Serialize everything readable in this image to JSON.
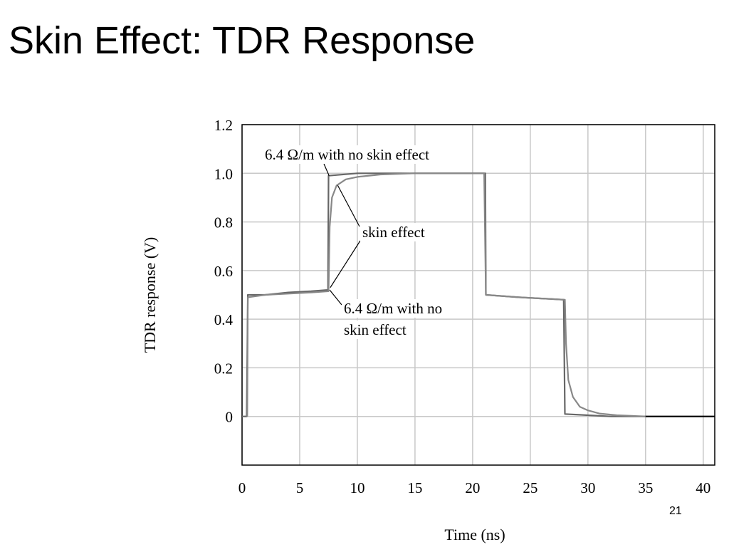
{
  "slide": {
    "title": "Skin Effect: TDR Response",
    "page_number": "21"
  },
  "chart_data": {
    "type": "line",
    "xlabel": "Time (ns)",
    "ylabel": "TDR response (V)",
    "xlim": [
      0,
      41
    ],
    "ylim": [
      -0.2,
      1.2
    ],
    "grid": true,
    "x_ticks": [
      "0",
      "5",
      "10",
      "15",
      "20",
      "25",
      "30",
      "35",
      "40"
    ],
    "y_ticks": [
      "1.2",
      "1.0",
      "0.8",
      "0.6",
      "0.4",
      "0.2",
      "0"
    ],
    "series": [
      {
        "style": "sharp",
        "color": "#666666",
        "points": [
          [
            0,
            0
          ],
          [
            0.4,
            0
          ],
          [
            0.5,
            0.5
          ],
          [
            2,
            0.5
          ],
          [
            4,
            0.51
          ],
          [
            6,
            0.515
          ],
          [
            7.3,
            0.52
          ],
          [
            7.45,
            0.52
          ],
          [
            7.5,
            0.99
          ],
          [
            10,
            1.0
          ],
          [
            15,
            1.0
          ],
          [
            21.1,
            1.0
          ],
          [
            21.15,
            0.5
          ],
          [
            24,
            0.49
          ],
          [
            26,
            0.485
          ],
          [
            27.9,
            0.48
          ],
          [
            28,
            0.01
          ],
          [
            30,
            0.005
          ],
          [
            32,
            0.0
          ],
          [
            35,
            0.0
          ]
        ]
      },
      {
        "style": "skin effect",
        "color": "#888888",
        "points": [
          [
            0.45,
            0
          ],
          [
            0.5,
            0.49
          ],
          [
            2,
            0.5
          ],
          [
            4,
            0.505
          ],
          [
            6,
            0.51
          ],
          [
            7.5,
            0.515
          ],
          [
            7.6,
            0.78
          ],
          [
            7.8,
            0.9
          ],
          [
            8.2,
            0.95
          ],
          [
            9,
            0.975
          ],
          [
            10,
            0.985
          ],
          [
            12,
            0.995
          ],
          [
            15,
            1.0
          ],
          [
            18,
            1.0
          ],
          [
            21,
            1.0
          ],
          [
            21.15,
            0.5
          ],
          [
            24,
            0.49
          ],
          [
            26,
            0.485
          ],
          [
            28,
            0.48
          ],
          [
            28.1,
            0.3
          ],
          [
            28.3,
            0.15
          ],
          [
            28.7,
            0.08
          ],
          [
            29.3,
            0.04
          ],
          [
            30,
            0.025
          ],
          [
            31,
            0.012
          ],
          [
            32.5,
            0.005
          ],
          [
            35,
            0.0
          ]
        ]
      },
      {
        "style": "baseline",
        "color": "#000000",
        "points": [
          [
            35,
            0.0
          ],
          [
            41,
            0.0
          ]
        ]
      }
    ],
    "annotations": [
      {
        "text": "6.4 Ω/m with no skin effect",
        "pointer_to": [
          7.6,
          0.99
        ]
      },
      {
        "text": "skin effect",
        "pointer_to": [
          [
            8.3,
            0.95
          ],
          [
            7.6,
            0.53
          ]
        ]
      },
      {
        "text": "6.4 Ω/m with no",
        "pointer_to": [
          7.6,
          0.52
        ]
      },
      {
        "text": "skin effect"
      }
    ]
  }
}
